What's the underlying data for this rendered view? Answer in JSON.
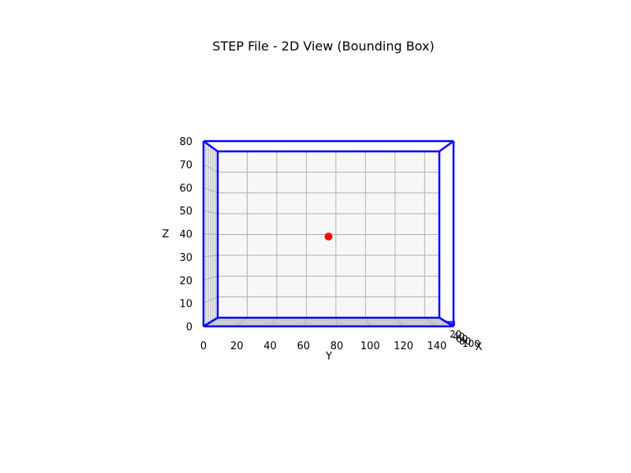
{
  "chart_data": {
    "type": "scatter",
    "projection": "3d",
    "title": "STEP File - 2D View (Bounding Box)",
    "xlabel": "X",
    "ylabel": "Y",
    "zlabel": "Z",
    "ylim": [
      0,
      150
    ],
    "zlim": [
      0,
      80
    ],
    "y_ticks": [
      "0",
      "20",
      "40",
      "60",
      "80",
      "100",
      "120",
      "140"
    ],
    "z_ticks": [
      "0",
      "10",
      "20",
      "30",
      "40",
      "50",
      "60",
      "70",
      "80"
    ],
    "x_ticks": [
      "20",
      "40",
      "60",
      "80",
      "100"
    ],
    "bounding_box": {
      "y": [
        0,
        150
      ],
      "z": [
        0,
        80
      ],
      "color": "#0000ff"
    },
    "points": [
      {
        "y": 75,
        "z": 39,
        "color": "#ff0000"
      }
    ],
    "grid": true
  }
}
